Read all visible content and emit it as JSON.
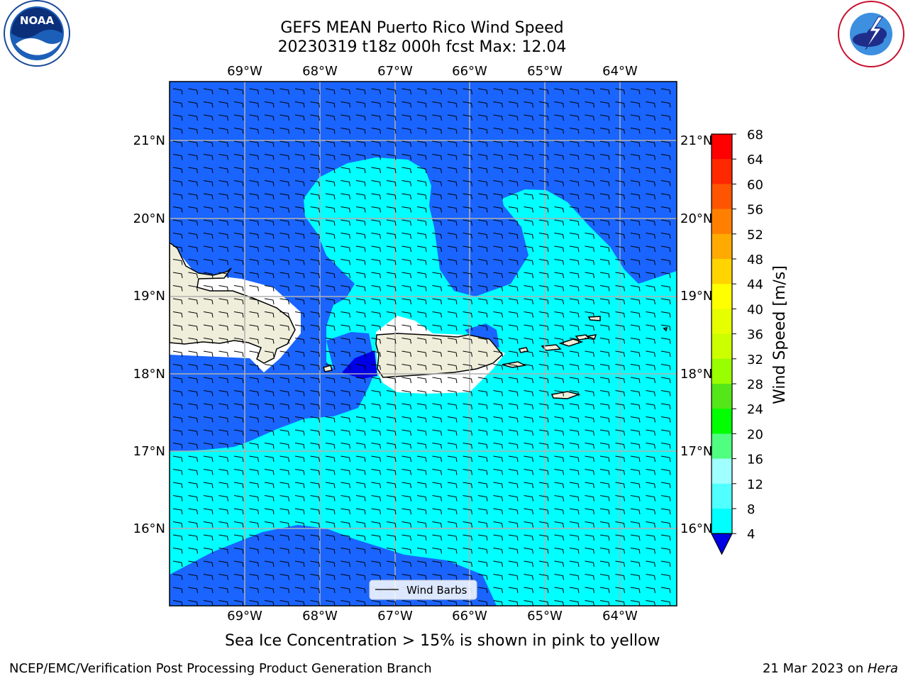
{
  "title": {
    "line1": "GEFS MEAN Puerto Rico Wind Speed",
    "line2": "20230319 t18z 000h fcst   Max: 12.04"
  },
  "map": {
    "lon_labels": [
      "69°W",
      "68°W",
      "67°W",
      "66°W",
      "65°W",
      "64°W"
    ],
    "lat_labels": [
      "21°N",
      "20°N",
      "19°N",
      "18°N",
      "17°N",
      "16°N"
    ],
    "legend_label": "Wind Barbs",
    "colors": {
      "ocean_low": "#1a64ff",
      "ocean_mid": "#00ffff",
      "ocean_min": "#0000e6",
      "land": "#efeedb",
      "gridline": "#b0b0b0"
    }
  },
  "colorbar": {
    "label": "Wind Speed [m/s]",
    "ticks": [
      "68",
      "64",
      "60",
      "56",
      "52",
      "48",
      "44",
      "40",
      "36",
      "32",
      "28",
      "24",
      "20",
      "16",
      "12",
      "8",
      "4"
    ],
    "colors": [
      "#ff0000",
      "#ff2800",
      "#ff5500",
      "#ff8000",
      "#ffaa00",
      "#ffd400",
      "#ffff00",
      "#e6ff00",
      "#ccff00",
      "#99ff00",
      "#55e61a",
      "#00ff00",
      "#50ff80",
      "#a0ffff",
      "#50ffff",
      "#00ffff",
      "#1a64ff"
    ],
    "under_color": "#0000e6"
  },
  "caption": "Sea Ice Concentration > 15% is shown in pink to yellow",
  "footer": {
    "left": "NCEP/EMC/Verification Post Processing Product Generation Branch",
    "date": "21 Mar 2023 on ",
    "machine": "Hera"
  },
  "logos": {
    "left": "noaa-logo",
    "right": "nws-logo"
  }
}
